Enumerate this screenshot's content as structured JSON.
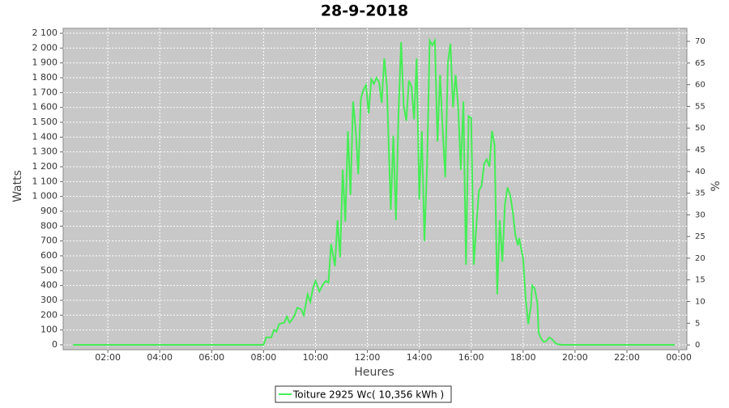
{
  "chart_data": {
    "type": "line",
    "title": "28-9-2018",
    "x_label": "Heures",
    "y_label": "Watts",
    "y2_label": "%",
    "x": [
      0.66,
      8.0,
      8.1,
      8.3,
      8.4,
      8.5,
      8.6,
      8.8,
      8.9,
      9.0,
      9.1,
      9.2,
      9.3,
      9.45,
      9.55,
      9.7,
      9.8,
      9.9,
      10.0,
      10.15,
      10.3,
      10.4,
      10.5,
      10.6,
      10.75,
      10.85,
      10.95,
      11.05,
      11.15,
      11.25,
      11.35,
      11.45,
      11.55,
      11.65,
      11.75,
      11.85,
      11.95,
      12.05,
      12.15,
      12.25,
      12.35,
      12.45,
      12.55,
      12.65,
      12.75,
      12.9,
      13.0,
      13.1,
      13.2,
      13.3,
      13.4,
      13.5,
      13.6,
      13.7,
      13.8,
      13.9,
      14.0,
      14.1,
      14.2,
      14.3,
      14.4,
      14.5,
      14.6,
      14.7,
      14.8,
      14.9,
      15.0,
      15.1,
      15.2,
      15.3,
      15.4,
      15.5,
      15.6,
      15.7,
      15.8,
      15.9,
      16.0,
      16.1,
      16.2,
      16.3,
      16.4,
      16.5,
      16.6,
      16.7,
      16.8,
      16.9,
      17.0,
      17.1,
      17.2,
      17.3,
      17.4,
      17.5,
      17.6,
      17.7,
      17.8,
      17.85,
      18.0,
      18.1,
      18.2,
      18.3,
      18.35,
      18.45,
      18.55,
      18.6,
      18.7,
      18.8,
      18.9,
      19.0,
      19.1,
      19.2,
      19.3,
      19.5,
      23.84
    ],
    "series": [
      {
        "name": "Toiture 2925 Wc( 10,356 kWh )",
        "color": "#44ee55",
        "values": [
          0,
          0,
          50,
          50,
          100,
          90,
          140,
          150,
          190,
          150,
          170,
          200,
          250,
          240,
          200,
          340,
          290,
          380,
          430,
          360,
          410,
          430,
          420,
          680,
          530,
          840,
          590,
          1180,
          830,
          1440,
          1010,
          1640,
          1450,
          1150,
          1660,
          1720,
          1750,
          1560,
          1790,
          1760,
          1800,
          1770,
          1630,
          1930,
          1750,
          910,
          1410,
          840,
          1560,
          2040,
          1610,
          1510,
          1780,
          1740,
          1520,
          1930,
          980,
          1440,
          700,
          1200,
          2050,
          2020,
          2050,
          1370,
          1820,
          1450,
          1130,
          1900,
          2030,
          1600,
          1820,
          1600,
          1180,
          1640,
          540,
          1540,
          1530,
          540,
          800,
          1040,
          1070,
          1220,
          1250,
          1200,
          1440,
          1350,
          340,
          840,
          560,
          950,
          1060,
          1010,
          900,
          740,
          670,
          720,
          580,
          310,
          140,
          260,
          400,
          380,
          280,
          80,
          40,
          20,
          25,
          50,
          40,
          20,
          5,
          0,
          0
        ]
      }
    ],
    "xlim": [
      0.28,
      24.31
    ],
    "xticks": [
      {
        "value": 2,
        "label": "02:00"
      },
      {
        "value": 4,
        "label": "04:00"
      },
      {
        "value": 6,
        "label": "06:00"
      },
      {
        "value": 8,
        "label": "08:00"
      },
      {
        "value": 10,
        "label": "10:00"
      },
      {
        "value": 12,
        "label": "12:00"
      },
      {
        "value": 14,
        "label": "14:00"
      },
      {
        "value": 16,
        "label": "16:00"
      },
      {
        "value": 18,
        "label": "18:00"
      },
      {
        "value": 20,
        "label": "20:00"
      },
      {
        "value": 22,
        "label": "22:00"
      },
      {
        "value": 24,
        "label": "00:00"
      }
    ],
    "ylim": [
      -33,
      2133
    ],
    "yticks": [
      0,
      100,
      200,
      300,
      400,
      500,
      600,
      700,
      800,
      900,
      {
        "value": 1000,
        "label": "1 000"
      },
      {
        "value": 1100,
        "label": "1 100"
      },
      {
        "value": 1200,
        "label": "1 200"
      },
      {
        "value": 1300,
        "label": "1 300"
      },
      {
        "value": 1400,
        "label": "1 400"
      },
      {
        "value": 1500,
        "label": "1 500"
      },
      {
        "value": 1600,
        "label": "1 600"
      },
      {
        "value": 1700,
        "label": "1 700"
      },
      {
        "value": 1800,
        "label": "1 800"
      },
      {
        "value": 1900,
        "label": "1 900"
      },
      {
        "value": 2000,
        "label": "2 000"
      },
      {
        "value": 2100,
        "label": "2 100"
      }
    ],
    "y2lim": [
      -1.1,
      73
    ],
    "y2ticks": [
      0,
      5,
      10,
      15,
      20,
      25,
      30,
      35,
      40,
      45,
      50,
      55,
      60,
      65,
      70
    ],
    "grid": true,
    "legend": "bottom"
  }
}
